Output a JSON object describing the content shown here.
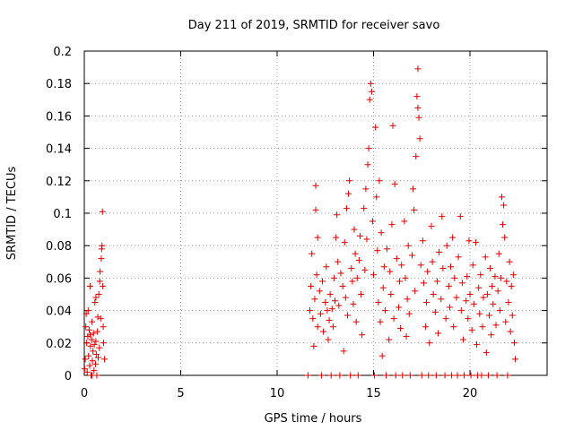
{
  "chart_data": {
    "type": "scatter",
    "title": "Day 211 of 2019, SRMTID for receiver savo",
    "xlabel": "GPS time / hours",
    "ylabel": "SRMTID / TECUs",
    "xlim": [
      0,
      24
    ],
    "ylim": [
      0,
      0.2
    ],
    "x_ticks": [
      0,
      5,
      10,
      15,
      20
    ],
    "x_tick_labels": [
      "0",
      "5",
      "10",
      "15",
      "20"
    ],
    "y_ticks": [
      0,
      0.02,
      0.04,
      0.06,
      0.08,
      0.1,
      0.12,
      0.14,
      0.16,
      0.18,
      0.2
    ],
    "y_tick_labels": [
      "0",
      "0.02",
      "0.04",
      "0.06",
      "0.08",
      "0.1",
      "0.12",
      "0.14",
      "0.16",
      "0.18",
      "0.2"
    ],
    "grid": true,
    "marker": "+",
    "marker_color": "#e00000",
    "series": [
      {
        "name": "SRMTID",
        "points": [
          [
            0.02,
            0.004
          ],
          [
            0.05,
            0.01
          ],
          [
            0.08,
            0.03
          ],
          [
            0.1,
            0.038
          ],
          [
            0.12,
            0.02
          ],
          [
            0.15,
            0.002
          ],
          [
            0.18,
            0.024
          ],
          [
            0.2,
            0.04
          ],
          [
            0.22,
            0.012
          ],
          [
            0.25,
            0.028
          ],
          [
            0.28,
            0.006
          ],
          [
            0.3,
            0.055
          ],
          [
            0.32,
            0.018
          ],
          [
            0.35,
            0.0
          ],
          [
            0.38,
            0.022
          ],
          [
            0.4,
            0.033
          ],
          [
            0.42,
            0.009
          ],
          [
            0.45,
            0.015
          ],
          [
            0.48,
            0.026
          ],
          [
            0.5,
            0.003
          ],
          [
            0.52,
            0.019
          ],
          [
            0.55,
            0.045
          ],
          [
            0.58,
            0.007
          ],
          [
            0.6,
            0.021
          ],
          [
            0.62,
            0.013
          ],
          [
            0.65,
            0.0
          ],
          [
            0.68,
            0.027
          ],
          [
            0.7,
            0.036
          ],
          [
            0.72,
            0.011
          ],
          [
            0.75,
            0.05
          ],
          [
            0.78,
            0.017
          ],
          [
            0.8,
            0.058
          ],
          [
            0.82,
            0.064
          ],
          [
            0.85,
            0.035
          ],
          [
            0.88,
            0.072
          ],
          [
            0.9,
            0.078
          ],
          [
            0.92,
            0.08
          ],
          [
            0.94,
            0.101
          ],
          [
            0.96,
            0.055
          ],
          [
            0.98,
            0.03
          ],
          [
            1.0,
            0.02
          ],
          [
            1.05,
            0.01
          ],
          [
            0.6,
            0.048
          ],
          [
            0.4,
            0.0
          ],
          [
            0.3,
            0.025
          ],
          [
            11.6,
            0.0
          ],
          [
            11.7,
            0.04
          ],
          [
            11.75,
            0.055
          ],
          [
            11.8,
            0.075
          ],
          [
            11.85,
            0.035
          ],
          [
            11.9,
            0.018
          ],
          [
            11.95,
            0.047
          ],
          [
            12.0,
            0.102
          ],
          [
            12.0,
            0.117
          ],
          [
            12.05,
            0.062
          ],
          [
            12.1,
            0.085
          ],
          [
            12.1,
            0.03
          ],
          [
            12.2,
            0.052
          ],
          [
            12.25,
            0.038
          ],
          [
            12.3,
            0.0
          ],
          [
            12.35,
            0.058
          ],
          [
            12.4,
            0.027
          ],
          [
            12.5,
            0.045
          ],
          [
            12.55,
            0.067
          ],
          [
            12.6,
            0.04
          ],
          [
            12.65,
            0.022
          ],
          [
            12.7,
            0.034
          ],
          [
            12.75,
            0.05
          ],
          [
            12.8,
            0.0
          ],
          [
            12.85,
            0.041
          ],
          [
            12.9,
            0.03
          ],
          [
            12.95,
            0.06
          ],
          [
            13.0,
            0.046
          ],
          [
            13.05,
            0.085
          ],
          [
            13.1,
            0.099
          ],
          [
            13.15,
            0.07
          ],
          [
            13.2,
            0.043
          ],
          [
            13.25,
            0.0
          ],
          [
            13.3,
            0.063
          ],
          [
            13.4,
            0.055
          ],
          [
            13.45,
            0.015
          ],
          [
            13.5,
            0.082
          ],
          [
            13.55,
            0.048
          ],
          [
            13.6,
            0.103
          ],
          [
            13.65,
            0.037
          ],
          [
            13.7,
            0.112
          ],
          [
            13.75,
            0.12
          ],
          [
            13.8,
            0.0
          ],
          [
            13.85,
            0.066
          ],
          [
            13.9,
            0.058
          ],
          [
            13.95,
            0.044
          ],
          [
            14.0,
            0.09
          ],
          [
            14.05,
            0.075
          ],
          [
            14.1,
            0.033
          ],
          [
            14.15,
            0.06
          ],
          [
            14.2,
            0.0
          ],
          [
            14.25,
            0.071
          ],
          [
            14.3,
            0.086
          ],
          [
            14.35,
            0.05
          ],
          [
            14.4,
            0.025
          ],
          [
            14.5,
            0.103
          ],
          [
            14.55,
            0.065
          ],
          [
            14.6,
            0.115
          ],
          [
            14.65,
            0.084
          ],
          [
            14.7,
            0.13
          ],
          [
            14.75,
            0.14
          ],
          [
            14.8,
            0.17
          ],
          [
            14.85,
            0.18
          ],
          [
            14.9,
            0.175
          ],
          [
            14.95,
            0.095
          ],
          [
            15.0,
            0.062
          ],
          [
            15.05,
            0.0
          ],
          [
            15.1,
            0.153
          ],
          [
            15.15,
            0.11
          ],
          [
            15.2,
            0.077
          ],
          [
            15.25,
            0.045
          ],
          [
            15.3,
            0.12
          ],
          [
            15.35,
            0.033
          ],
          [
            15.4,
            0.088
          ],
          [
            15.45,
            0.012
          ],
          [
            15.5,
            0.054
          ],
          [
            15.55,
            0.067
          ],
          [
            15.6,
            0.04
          ],
          [
            15.65,
            0.0
          ],
          [
            15.7,
            0.078
          ],
          [
            15.8,
            0.022
          ],
          [
            15.85,
            0.064
          ],
          [
            15.9,
            0.05
          ],
          [
            15.95,
            0.093
          ],
          [
            16.0,
            0.154
          ],
          [
            16.05,
            0.035
          ],
          [
            16.1,
            0.118
          ],
          [
            16.15,
            0.0
          ],
          [
            16.2,
            0.072
          ],
          [
            16.3,
            0.042
          ],
          [
            16.35,
            0.058
          ],
          [
            16.4,
            0.029
          ],
          [
            16.45,
            0.068
          ],
          [
            16.5,
            0.0
          ],
          [
            16.6,
            0.095
          ],
          [
            16.65,
            0.06
          ],
          [
            16.7,
            0.024
          ],
          [
            16.75,
            0.047
          ],
          [
            16.8,
            0.08
          ],
          [
            16.85,
            0.038
          ],
          [
            16.9,
            0.0
          ],
          [
            17.0,
            0.074
          ],
          [
            17.05,
            0.115
          ],
          [
            17.1,
            0.102
          ],
          [
            17.15,
            0.052
          ],
          [
            17.2,
            0.135
          ],
          [
            17.25,
            0.172
          ],
          [
            17.3,
            0.189
          ],
          [
            17.3,
            0.165
          ],
          [
            17.35,
            0.159
          ],
          [
            17.4,
            0.146
          ],
          [
            17.45,
            0.068
          ],
          [
            17.5,
            0.0
          ],
          [
            17.55,
            0.083
          ],
          [
            17.6,
            0.057
          ],
          [
            17.7,
            0.03
          ],
          [
            17.75,
            0.045
          ],
          [
            17.8,
            0.064
          ],
          [
            17.85,
            0.0
          ],
          [
            17.9,
            0.02
          ],
          [
            18.0,
            0.092
          ],
          [
            18.05,
            0.07
          ],
          [
            18.1,
            0.05
          ],
          [
            18.2,
            0.039
          ],
          [
            18.25,
            0.0
          ],
          [
            18.3,
            0.058
          ],
          [
            18.35,
            0.026
          ],
          [
            18.4,
            0.076
          ],
          [
            18.5,
            0.047
          ],
          [
            18.55,
            0.098
          ],
          [
            18.6,
            0.066
          ],
          [
            18.7,
            0.0
          ],
          [
            18.75,
            0.035
          ],
          [
            18.8,
            0.08
          ],
          [
            18.9,
            0.055
          ],
          [
            18.95,
            0.042
          ],
          [
            19.0,
            0.067
          ],
          [
            19.05,
            0.0
          ],
          [
            19.1,
            0.085
          ],
          [
            19.15,
            0.03
          ],
          [
            19.2,
            0.06
          ],
          [
            19.3,
            0.048
          ],
          [
            19.35,
            0.0
          ],
          [
            19.4,
            0.073
          ],
          [
            19.5,
            0.098
          ],
          [
            19.55,
            0.04
          ],
          [
            19.6,
            0.057
          ],
          [
            19.65,
            0.022
          ],
          [
            19.7,
            0.0
          ],
          [
            19.8,
            0.046
          ],
          [
            19.85,
            0.061
          ],
          [
            19.9,
            0.035
          ],
          [
            19.95,
            0.083
          ],
          [
            20.0,
            0.05
          ],
          [
            20.05,
            0.0
          ],
          [
            20.1,
            0.028
          ],
          [
            20.15,
            0.068
          ],
          [
            20.2,
            0.044
          ],
          [
            20.3,
            0.082
          ],
          [
            20.35,
            0.019
          ],
          [
            20.4,
            0.0
          ],
          [
            20.45,
            0.054
          ],
          [
            20.5,
            0.038
          ],
          [
            20.55,
            0.062
          ],
          [
            20.6,
            0.0
          ],
          [
            20.65,
            0.03
          ],
          [
            20.7,
            0.048
          ],
          [
            20.8,
            0.073
          ],
          [
            20.85,
            0.014
          ],
          [
            20.9,
            0.05
          ],
          [
            20.95,
            0.0
          ],
          [
            21.0,
            0.037
          ],
          [
            21.05,
            0.066
          ],
          [
            21.1,
            0.025
          ],
          [
            21.15,
            0.055
          ],
          [
            21.2,
            0.044
          ],
          [
            21.3,
            0.061
          ],
          [
            21.35,
            0.031
          ],
          [
            21.4,
            0.0
          ],
          [
            21.45,
            0.052
          ],
          [
            21.5,
            0.075
          ],
          [
            21.55,
            0.04
          ],
          [
            21.6,
            0.06
          ],
          [
            21.65,
            0.11
          ],
          [
            21.7,
            0.093
          ],
          [
            21.75,
            0.105
          ],
          [
            21.8,
            0.085
          ],
          [
            21.85,
            0.033
          ],
          [
            21.9,
            0.058
          ],
          [
            21.95,
            0.0
          ],
          [
            22.0,
            0.045
          ],
          [
            22.05,
            0.07
          ],
          [
            22.1,
            0.027
          ],
          [
            22.15,
            0.055
          ],
          [
            22.2,
            0.037
          ],
          [
            22.25,
            0.062
          ],
          [
            22.3,
            0.02
          ],
          [
            22.35,
            0.01
          ]
        ]
      }
    ]
  }
}
